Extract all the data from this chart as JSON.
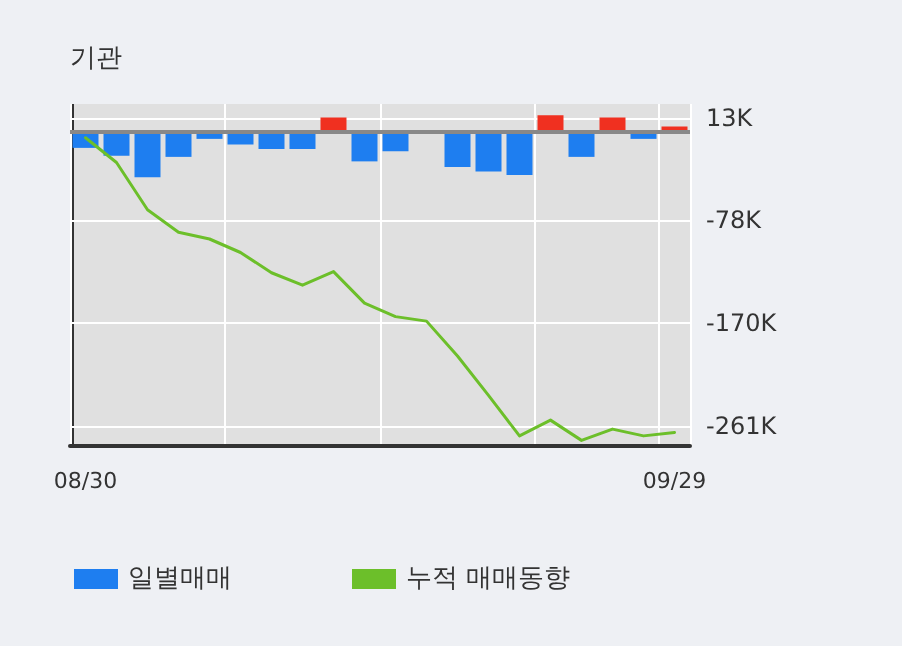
{
  "chart_data": {
    "type": "bar",
    "title": "기관",
    "categories": [
      "08/30",
      null,
      null,
      null,
      null,
      null,
      null,
      null,
      null,
      null,
      null,
      null,
      null,
      null,
      null,
      null,
      null,
      null,
      null,
      "09/29"
    ],
    "series": [
      {
        "name": "일별매매",
        "color": "#1e7ef0",
        "colors": [
          "#1e7ef0",
          "#1e7ef0",
          "#1e7ef0",
          "#1e7ef0",
          "#1e7ef0",
          "#1e7ef0",
          "#1e7ef0",
          "#1e7ef0",
          "#f03020",
          "#1e7ef0",
          "#1e7ef0",
          "#1e7ef0",
          "#1e7ef0",
          "#1e7ef0",
          "#1e7ef0",
          "#f03020",
          "#1e7ef0",
          "#f03020",
          "#1e7ef0",
          "#f03020"
        ],
        "values": [
          -14,
          -21,
          -40,
          -22,
          -6,
          -11,
          -15,
          -15,
          13,
          -26,
          -17,
          0,
          -31,
          -35,
          -38,
          15,
          -22,
          13,
          -6,
          5
        ]
      },
      {
        "type": "line",
        "name": "누적 매매동향",
        "color": "#6cbf2a",
        "values": [
          -5,
          -27,
          -69,
          -89,
          -95,
          -107,
          -125,
          -136,
          -124,
          -152,
          -164,
          -168,
          -199,
          -234,
          -270,
          -256,
          -274,
          -264,
          -270,
          -267
        ]
      }
    ],
    "ylim": [
      -279,
      25
    ],
    "yticks": [
      {
        "value": 13,
        "label": "13K"
      },
      {
        "value": -78,
        "label": "-78K"
      },
      {
        "value": -170,
        "label": "-170K"
      },
      {
        "value": -261,
        "label": "-261K"
      }
    ],
    "ref_lines": [
      {
        "axis": "y",
        "value": 0,
        "color": "#888888"
      }
    ],
    "grid": true,
    "legend": "bottom",
    "marker": "none",
    "line_style": "solid"
  }
}
